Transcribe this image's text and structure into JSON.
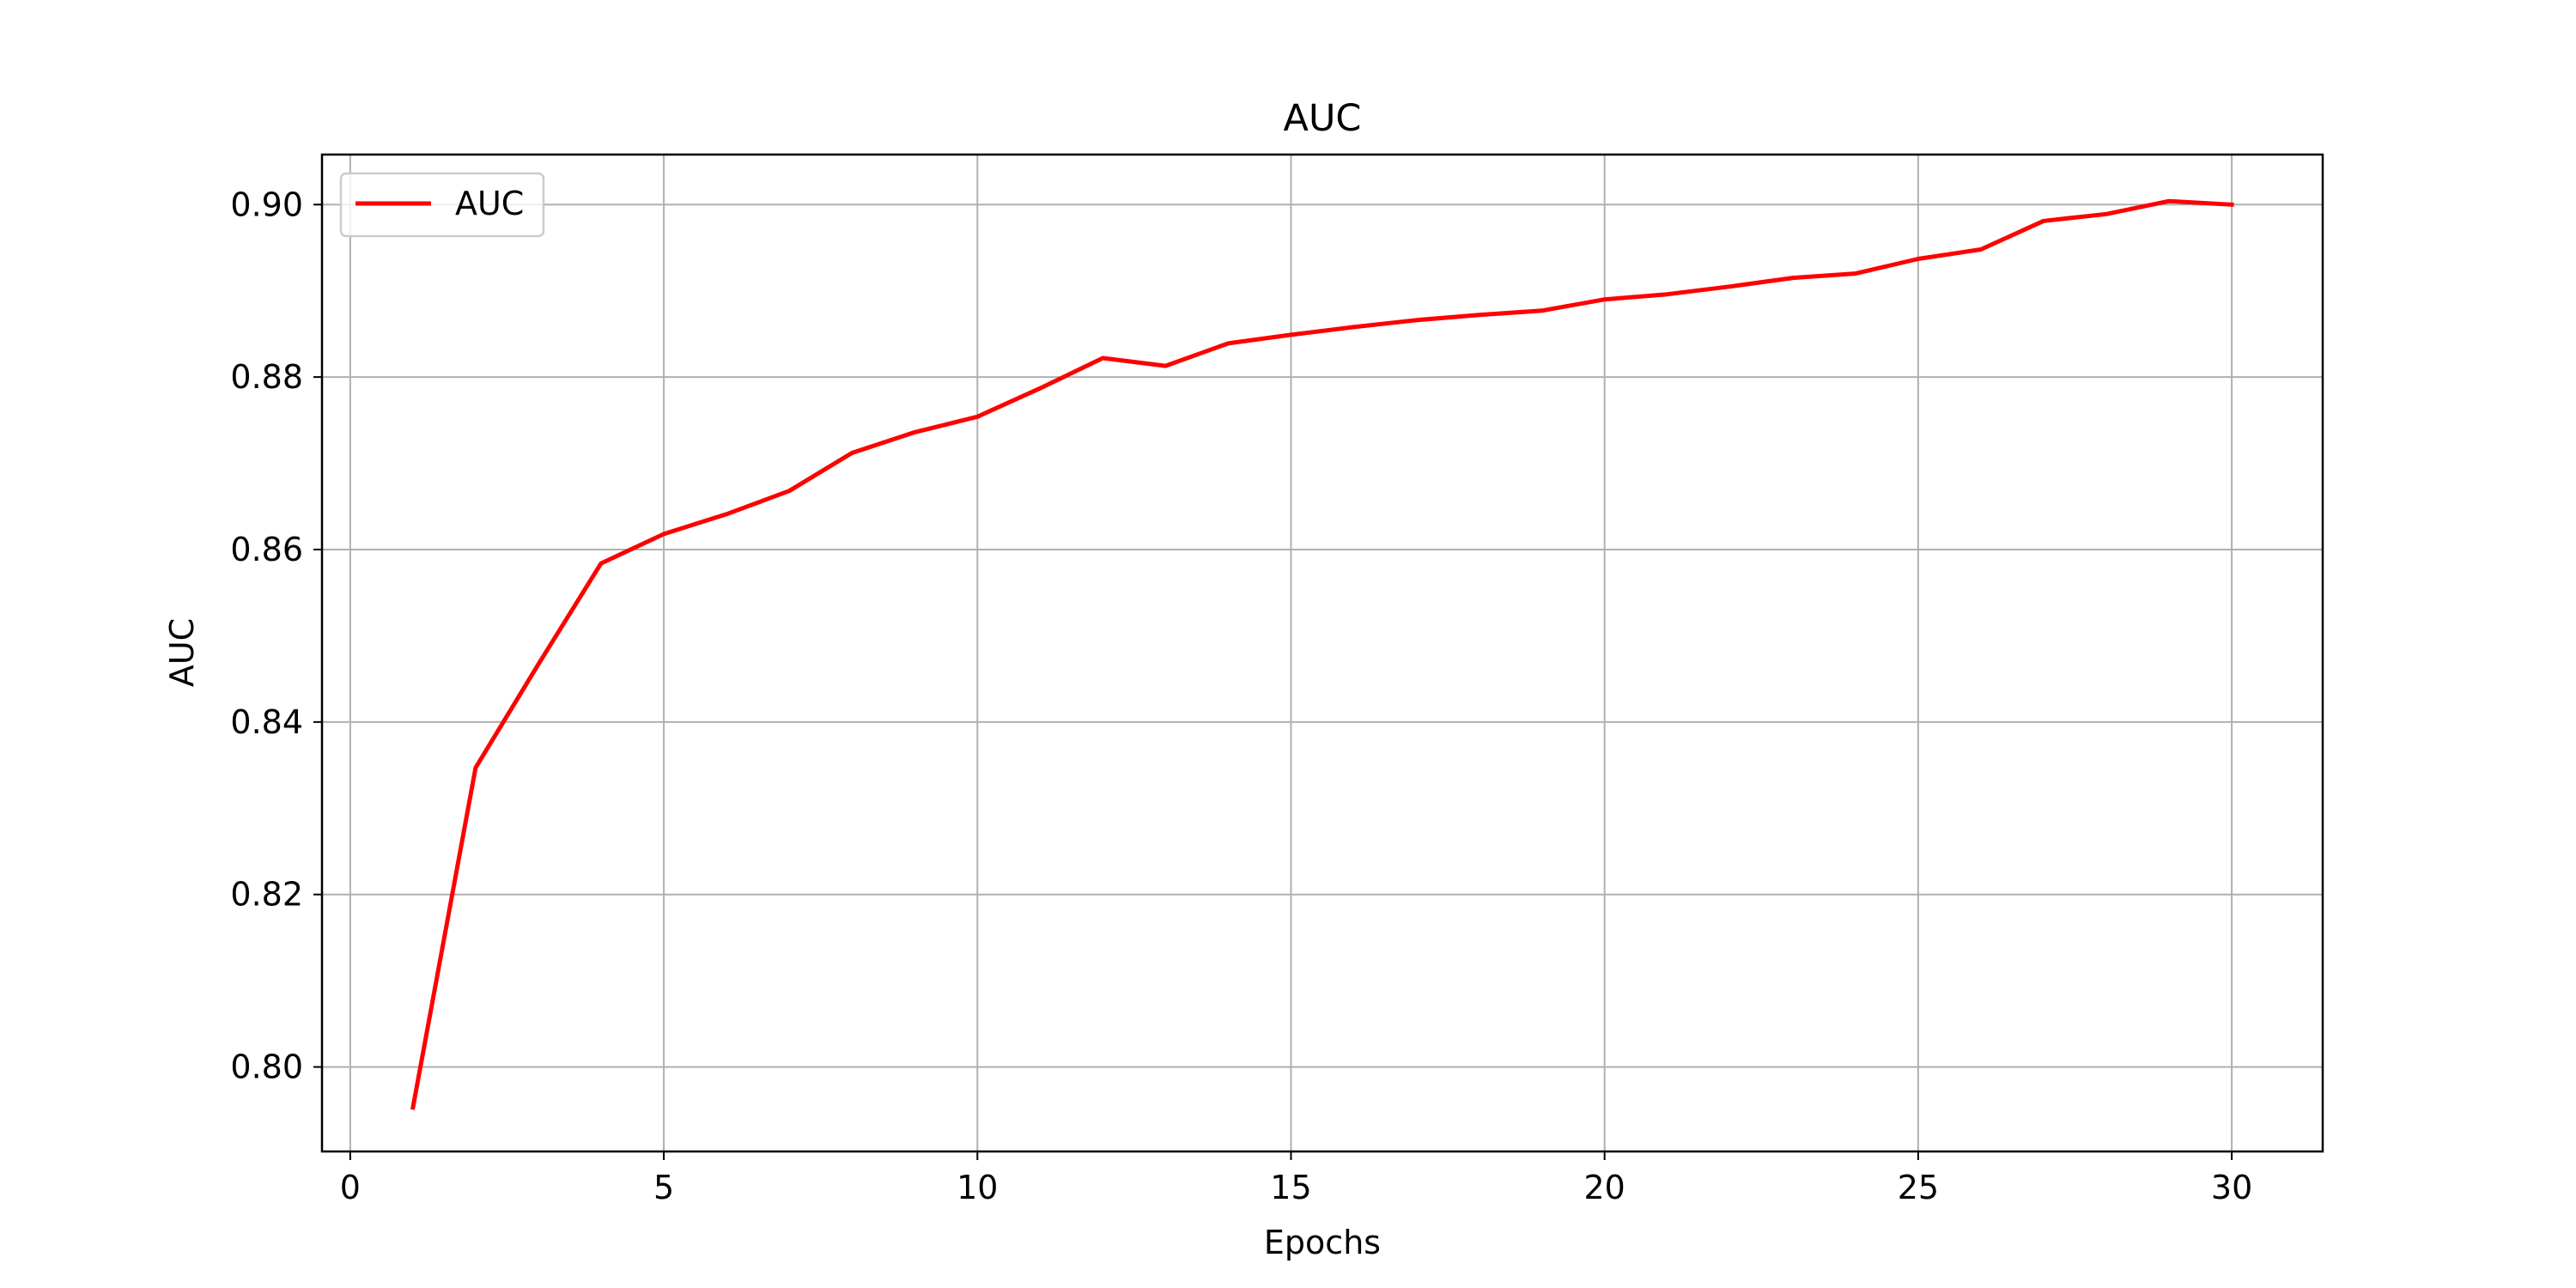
{
  "chart_data": {
    "type": "line",
    "title": "AUC",
    "xlabel": "Epochs",
    "ylabel": "AUC",
    "xlim": [
      -0.45,
      31.45
    ],
    "ylim": [
      0.7902,
      0.9058
    ],
    "x_ticks": [
      0,
      5,
      10,
      15,
      20,
      25,
      30
    ],
    "y_ticks": [
      0.8,
      0.82,
      0.84,
      0.86,
      0.88,
      0.9
    ],
    "y_tick_labels": [
      "0.80",
      "0.82",
      "0.84",
      "0.86",
      "0.88",
      "0.90"
    ],
    "x_tick_labels": [
      "0",
      "5",
      "10",
      "15",
      "20",
      "25",
      "30"
    ],
    "grid": true,
    "legend_position": "upper-left",
    "series": [
      {
        "name": "AUC",
        "color": "#ff0000",
        "x": [
          1,
          2,
          3,
          4,
          5,
          6,
          7,
          8,
          9,
          10,
          11,
          12,
          13,
          14,
          15,
          16,
          17,
          18,
          19,
          20,
          21,
          22,
          23,
          24,
          25,
          26,
          27,
          28,
          29,
          30
        ],
        "values": [
          0.7953,
          0.8347,
          0.8467,
          0.8584,
          0.8618,
          0.8641,
          0.8668,
          0.8712,
          0.8736,
          0.8754,
          0.8787,
          0.8822,
          0.8813,
          0.8839,
          0.8849,
          0.8858,
          0.8866,
          0.8872,
          0.8877,
          0.889,
          0.8896,
          0.8905,
          0.8915,
          0.892,
          0.8937,
          0.8948,
          0.8981,
          0.8989,
          0.9004,
          0.9
        ]
      }
    ]
  }
}
